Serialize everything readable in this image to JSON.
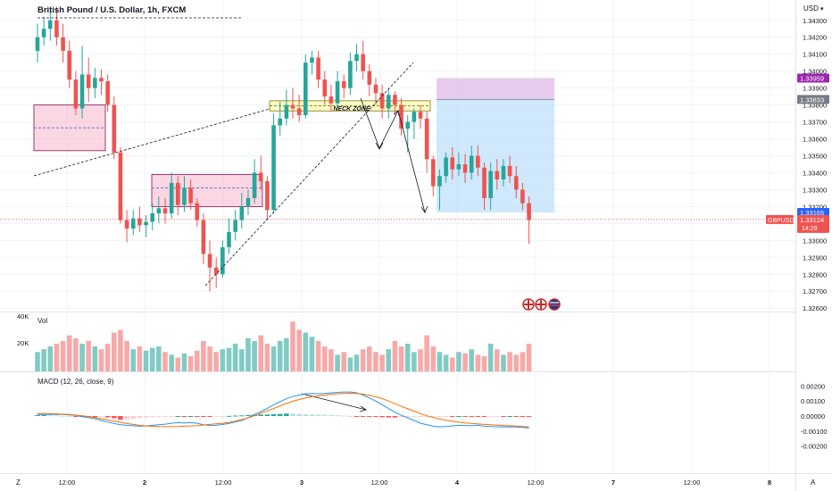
{
  "header": {
    "title": "British Pound / U.S. Dollar, 1h, FXCM",
    "currency": "USD",
    "currency_caret": "▾"
  },
  "colors": {
    "up": "#26a69a",
    "up_volume": "#80cbc4",
    "down": "#ef5350",
    "down_volume": "#f7a9a7",
    "macd_line": "#2196f3",
    "signal_line": "#ff6d00",
    "current_price": "#ef5350",
    "tp_zone": "#e1bee7",
    "sl_zone": "#bbdefb",
    "neck_zone": "#fff9c4",
    "supply_zone": "#f8bbd0"
  },
  "annotations": {
    "neck_zone": "NECK ZONE",
    "flags": [
      "GB",
      "GB",
      "US"
    ]
  },
  "price_axis": {
    "ticks": [
      "1.34300",
      "1.34200",
      "1.34100",
      "1.34000",
      "1.33900",
      "1.33800",
      "1.33700",
      "1.33600",
      "1.33500",
      "1.33400",
      "1.33300",
      "1.33200",
      "1.33100",
      "1.33000",
      "1.32900",
      "1.32800",
      "1.32700",
      "1.32600"
    ],
    "badges": [
      {
        "text": "1.33959",
        "value": 1.33959,
        "color": "#9c27b0"
      },
      {
        "text": "1.33833",
        "value": 1.33833,
        "color": "#787b86"
      },
      {
        "text": "1.33165",
        "value": 1.33165,
        "color": "#2962ff"
      }
    ],
    "symbol_badge": {
      "symbol": "GBPUSD",
      "price": "1.33124",
      "countdown": "14:29",
      "value": 1.33124
    }
  },
  "time_axis": {
    "ticks": [
      "12:00",
      "2",
      "12:00",
      "3",
      "12:00",
      "4",
      "12:00",
      "7",
      "12:00",
      "8"
    ]
  },
  "volume_pane": {
    "label": "Vol",
    "ticks": [
      "40K",
      "20K"
    ]
  },
  "macd_pane": {
    "label": "MACD (12, 26, close, 9)",
    "ticks": [
      "0.00200",
      "0.00100",
      "0.00000",
      "-0.00100",
      "-0.00200"
    ]
  },
  "footer": {
    "left_btn": "Z",
    "right_btn": "A"
  },
  "chart_data": [
    {
      "type": "candlestick",
      "title": "British Pound / U.S. Dollar, 1h, FXCM",
      "ylim": [
        1.3258,
        1.3442
      ],
      "candles": [
        [
          1.3412,
          1.3428,
          1.3405,
          1.342
        ],
        [
          1.342,
          1.3432,
          1.3415,
          1.3425
        ],
        [
          1.3425,
          1.3438,
          1.3418,
          1.343
        ],
        [
          1.343,
          1.3438,
          1.3415,
          1.342
        ],
        [
          1.342,
          1.3428,
          1.3405,
          1.3412
        ],
        [
          1.3412,
          1.3418,
          1.339,
          1.3395
        ],
        [
          1.3395,
          1.34,
          1.3374,
          1.3378
        ],
        [
          1.3378,
          1.3415,
          1.3372,
          1.3398
        ],
        [
          1.3398,
          1.3408,
          1.3382,
          1.339
        ],
        [
          1.339,
          1.3402,
          1.3384,
          1.3396
        ],
        [
          1.3396,
          1.3401,
          1.3386,
          1.3394
        ],
        [
          1.3394,
          1.3398,
          1.3376,
          1.338
        ],
        [
          1.338,
          1.3385,
          1.3348,
          1.3352
        ],
        [
          1.3352,
          1.3355,
          1.331,
          1.3312
        ],
        [
          1.3312,
          1.3318,
          1.3299,
          1.3307
        ],
        [
          1.3307,
          1.3318,
          1.3303,
          1.3313
        ],
        [
          1.3313,
          1.332,
          1.3305,
          1.3309
        ],
        [
          1.3309,
          1.3315,
          1.3302,
          1.3311
        ],
        [
          1.3311,
          1.3322,
          1.3306,
          1.3316
        ],
        [
          1.3316,
          1.3326,
          1.331,
          1.3319
        ],
        [
          1.3319,
          1.3325,
          1.331,
          1.3316
        ],
        [
          1.3316,
          1.334,
          1.3313,
          1.3334
        ],
        [
          1.3334,
          1.3338,
          1.3315,
          1.3321
        ],
        [
          1.3321,
          1.3338,
          1.3317,
          1.3331
        ],
        [
          1.3331,
          1.3336,
          1.3318,
          1.3322
        ],
        [
          1.3322,
          1.3325,
          1.3308,
          1.3312
        ],
        [
          1.3312,
          1.3316,
          1.3286,
          1.3292
        ],
        [
          1.3292,
          1.33,
          1.327,
          1.3284
        ],
        [
          1.3284,
          1.329,
          1.3272,
          1.328
        ],
        [
          1.328,
          1.33,
          1.3278,
          1.3296
        ],
        [
          1.3296,
          1.3313,
          1.3292,
          1.3305
        ],
        [
          1.3305,
          1.3318,
          1.33,
          1.3312
        ],
        [
          1.3312,
          1.3328,
          1.3307,
          1.332
        ],
        [
          1.332,
          1.333,
          1.3315,
          1.3325
        ],
        [
          1.3325,
          1.3348,
          1.3322,
          1.334
        ],
        [
          1.334,
          1.335,
          1.333,
          1.3335
        ],
        [
          1.3335,
          1.3338,
          1.3312,
          1.3318
        ],
        [
          1.3318,
          1.3375,
          1.3316,
          1.3368
        ],
        [
          1.3368,
          1.3382,
          1.3362,
          1.3372
        ],
        [
          1.3372,
          1.3389,
          1.3368,
          1.338
        ],
        [
          1.338,
          1.339,
          1.3372,
          1.3378
        ],
        [
          1.3378,
          1.3386,
          1.337,
          1.3374
        ],
        [
          1.3374,
          1.341,
          1.3372,
          1.3405
        ],
        [
          1.3405,
          1.3412,
          1.3398,
          1.3408
        ],
        [
          1.3408,
          1.3412,
          1.339,
          1.3395
        ],
        [
          1.3395,
          1.34,
          1.338,
          1.3385
        ],
        [
          1.3385,
          1.3392,
          1.3376,
          1.3381
        ],
        [
          1.3381,
          1.34,
          1.3378,
          1.3394
        ],
        [
          1.3394,
          1.3398,
          1.3384,
          1.339
        ],
        [
          1.339,
          1.3411,
          1.3386,
          1.3406
        ],
        [
          1.3406,
          1.3416,
          1.34,
          1.341
        ],
        [
          1.341,
          1.3418,
          1.3395,
          1.34
        ],
        [
          1.34,
          1.3404,
          1.3385,
          1.3392
        ],
        [
          1.3392,
          1.3396,
          1.338,
          1.3387
        ],
        [
          1.3387,
          1.3392,
          1.3372,
          1.3378
        ],
        [
          1.3378,
          1.339,
          1.3372,
          1.3386
        ],
        [
          1.3386,
          1.3388,
          1.3374,
          1.338
        ],
        [
          1.338,
          1.3384,
          1.3362,
          1.3366
        ],
        [
          1.3366,
          1.3374,
          1.3352,
          1.337
        ],
        [
          1.337,
          1.3378,
          1.336,
          1.3376
        ],
        [
          1.3376,
          1.338,
          1.3366,
          1.3372
        ],
        [
          1.3372,
          1.3376,
          1.334,
          1.3348
        ],
        [
          1.3348,
          1.335,
          1.3326,
          1.3332
        ],
        [
          1.3332,
          1.3342,
          1.3318,
          1.3338
        ],
        [
          1.3338,
          1.3352,
          1.3334,
          1.3349
        ],
        [
          1.3349,
          1.3355,
          1.3336,
          1.3342
        ],
        [
          1.3342,
          1.3352,
          1.3338,
          1.3345
        ],
        [
          1.3345,
          1.3351,
          1.3334,
          1.334
        ],
        [
          1.334,
          1.3356,
          1.3336,
          1.335
        ],
        [
          1.335,
          1.3356,
          1.3338,
          1.3343
        ],
        [
          1.3343,
          1.3346,
          1.3318,
          1.3325
        ],
        [
          1.3325,
          1.3346,
          1.3318,
          1.3341
        ],
        [
          1.3341,
          1.3348,
          1.333,
          1.3336
        ],
        [
          1.3336,
          1.3348,
          1.3332,
          1.3344
        ],
        [
          1.3344,
          1.335,
          1.3334,
          1.3338
        ],
        [
          1.3338,
          1.3344,
          1.3325,
          1.333
        ],
        [
          1.333,
          1.3334,
          1.3318,
          1.3322
        ],
        [
          1.3322,
          1.3326,
          1.3298,
          1.3312
        ]
      ],
      "volume": [
        14,
        16,
        18,
        20,
        22,
        26,
        24,
        20,
        22,
        18,
        16,
        20,
        28,
        30,
        22,
        16,
        18,
        15,
        17,
        18,
        14,
        12,
        10,
        13,
        11,
        15,
        22,
        18,
        14,
        16,
        17,
        20,
        16,
        24,
        22,
        26,
        20,
        18,
        22,
        24,
        36,
        30,
        28,
        25,
        22,
        18,
        16,
        12,
        14,
        10,
        12,
        16,
        18,
        14,
        12,
        16,
        22,
        18,
        20,
        14,
        16,
        26,
        18,
        14,
        12,
        10,
        14,
        13,
        16,
        12,
        11,
        20,
        16,
        12,
        14,
        12,
        14,
        20
      ],
      "macd": {
        "histogram": [
          6e-05,
          6e-05,
          5e-05,
          4e-05,
          2e-05,
          1e-05,
          -3e-05,
          -6e-05,
          -7e-05,
          -8e-05,
          -7e-05,
          -9e-05,
          -0.00015,
          -0.00024,
          -0.00022,
          -0.00018,
          -0.00014,
          -0.0001,
          -8e-05,
          -5e-05,
          -3e-05,
          -1e-05,
          0.0,
          -1e-05,
          0.0,
          -2e-05,
          -6e-05,
          -6e-05,
          -4e-05,
          -2e-05,
          1e-05,
          3e-05,
          4e-05,
          6e-05,
          8e-05,
          9e-05,
          0.0001,
          0.00012,
          0.00014,
          0.00016,
          0.00015,
          0.00013,
          0.00011,
          0.0001,
          9e-05,
          8e-05,
          7e-05,
          5e-05,
          3e-05,
          1e-05,
          -1e-05,
          -2e-05,
          -4e-05,
          -6e-05,
          -8e-05,
          -9e-05,
          -0.0001,
          -8e-05,
          -7e-05,
          -6e-05,
          -5e-05,
          -4e-05,
          -3e-05,
          -2e-05,
          -1e-05,
          -1e-05,
          0.0,
          -1e-05,
          -2e-05,
          -2e-05,
          -3e-05,
          -2e-05,
          -1e-05,
          -1e-05,
          0.0,
          -1e-05,
          -2e-05,
          -3e-05
        ],
        "macd_line": [
          0.0001,
          0.00011,
          0.00011,
          0.00011,
          0.0001,
          8e-05,
          4e-05,
          -4e-05,
          -0.0001,
          -0.00018,
          -0.0003,
          -0.0004,
          -0.0005,
          -0.00058,
          -0.00062,
          -0.00065,
          -0.00068,
          -0.00066,
          -0.00062,
          -0.00058,
          -0.00054,
          -0.00048,
          -0.00044,
          -0.00046,
          -0.00044,
          -0.00048,
          -0.00058,
          -0.00064,
          -0.00062,
          -0.00056,
          -0.0005,
          -0.0004,
          -0.0003,
          -0.0001,
          0.0001,
          0.0003,
          0.0005,
          0.00075,
          0.00095,
          0.00115,
          0.0013,
          0.0014,
          0.00148,
          0.0015,
          0.00148,
          0.0015,
          0.00155,
          0.00158,
          0.0016,
          0.0016,
          0.00155,
          0.0014,
          0.0012,
          0.001,
          0.00075,
          0.0005,
          0.00025,
          5e-05,
          -0.00012,
          -0.0003,
          -0.00048,
          -0.00058,
          -0.00068,
          -0.00072,
          -0.0007,
          -0.00066,
          -0.00062,
          -0.00063,
          -0.00065,
          -0.00062,
          -0.00068,
          -0.0007,
          -0.00072,
          -0.00073,
          -0.00072,
          -0.00073,
          -0.00076,
          -0.0008
        ],
        "signal_line": [
          0.00016,
          0.00016,
          0.00015,
          0.00014,
          0.00012,
          0.0001,
          6e-05,
          2e-05,
          -3e-05,
          -0.0001,
          -0.00018,
          -0.00026,
          -0.00034,
          -0.00042,
          -0.0005,
          -0.00056,
          -0.00062,
          -0.00066,
          -0.00068,
          -0.0007,
          -0.00071,
          -0.00071,
          -0.0007,
          -0.00068,
          -0.00066,
          -0.00064,
          -0.0006,
          -0.00056,
          -0.00052,
          -0.00048,
          -0.00042,
          -0.00034,
          -0.00024,
          -0.00012,
          2e-05,
          0.00018,
          0.00034,
          0.0005,
          0.00068,
          0.00084,
          0.00098,
          0.0011,
          0.0012,
          0.00128,
          0.00134,
          0.0014,
          0.00145,
          0.00148,
          0.0015,
          0.00151,
          0.0015,
          0.00146,
          0.00138,
          0.00128,
          0.00116,
          0.001,
          0.00082,
          0.00064,
          0.00048,
          0.00032,
          0.00016,
          2e-05,
          -0.0001,
          -0.0002,
          -0.00028,
          -0.00035,
          -0.00041,
          -0.00046,
          -0.0005,
          -0.00053,
          -0.00056,
          -0.00058,
          -0.00061,
          -0.00063,
          -0.00065,
          -0.00067,
          -0.0007,
          -0.00073
        ],
        "ylim": [
          -0.0025,
          0.0025
        ]
      }
    }
  ]
}
